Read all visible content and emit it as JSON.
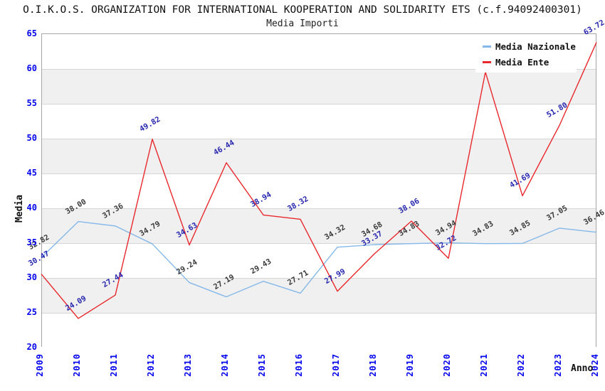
{
  "header": {
    "title": "O.I.K.O.S. ORGANIZATION FOR INTERNATIONAL KOOPERATION AND SOLIDARITY ETS (c.f.94092400301)",
    "subtitle": "Media Importi"
  },
  "legend": {
    "items": [
      {
        "label": "Media Nazionale",
        "color": "#85b8e8"
      },
      {
        "label": "Media Ente",
        "color": "#e8282c"
      }
    ]
  },
  "axes": {
    "y_label": "Media",
    "x_label": "Anno",
    "y_ticks": [
      "65",
      "60",
      "55",
      "50",
      "45",
      "40",
      "35",
      "30",
      "25",
      "20"
    ],
    "x_ticks": [
      "2009",
      "2010",
      "2011",
      "2012",
      "2013",
      "2014",
      "2015",
      "2016",
      "2017",
      "2018",
      "2019",
      "2020",
      "2021",
      "2022",
      "2023",
      "2024"
    ],
    "tick_color": "#0404ee"
  },
  "colors": {
    "band_gray": "#f0f0f0",
    "band_white": "#ffffff",
    "gridline": "#d6d6d6",
    "plot_border": "#a6a6a6",
    "nazionale_line": "#85b8e8",
    "ente_line": "#e8282c",
    "nazionale_label": "#3a3a3a",
    "ente_label": "#2525ae"
  },
  "chart_data": {
    "type": "line",
    "title": "Media Importi",
    "xlabel": "Anno",
    "ylabel": "Media",
    "categories": [
      2009,
      2010,
      2011,
      2012,
      2013,
      2014,
      2015,
      2016,
      2017,
      2018,
      2019,
      2020,
      2021,
      2022,
      2023,
      2024
    ],
    "series": [
      {
        "name": "Media Nazionale",
        "color": "#85b8e8",
        "label_color": "#3a3a3a",
        "values": [
          32.82,
          38.0,
          37.36,
          34.79,
          29.24,
          27.19,
          29.43,
          27.71,
          34.32,
          34.68,
          34.83,
          34.94,
          34.83,
          34.85,
          37.05,
          36.46
        ]
      },
      {
        "name": "Media Ente",
        "color": "#e8282c",
        "label_color": "#2525ae",
        "values": [
          30.47,
          24.09,
          27.44,
          49.82,
          34.63,
          46.44,
          38.94,
          38.32,
          27.99,
          33.37,
          38.06,
          32.72,
          59.45,
          41.69,
          51.8,
          63.72
        ],
        "label_hidden_indices": [
          12
        ],
        "estimated_value_indices": [
          12
        ]
      }
    ],
    "ylim": [
      20,
      65
    ],
    "y_step": 5,
    "grid": true,
    "banded_background": true,
    "legend_position": "top-right"
  }
}
